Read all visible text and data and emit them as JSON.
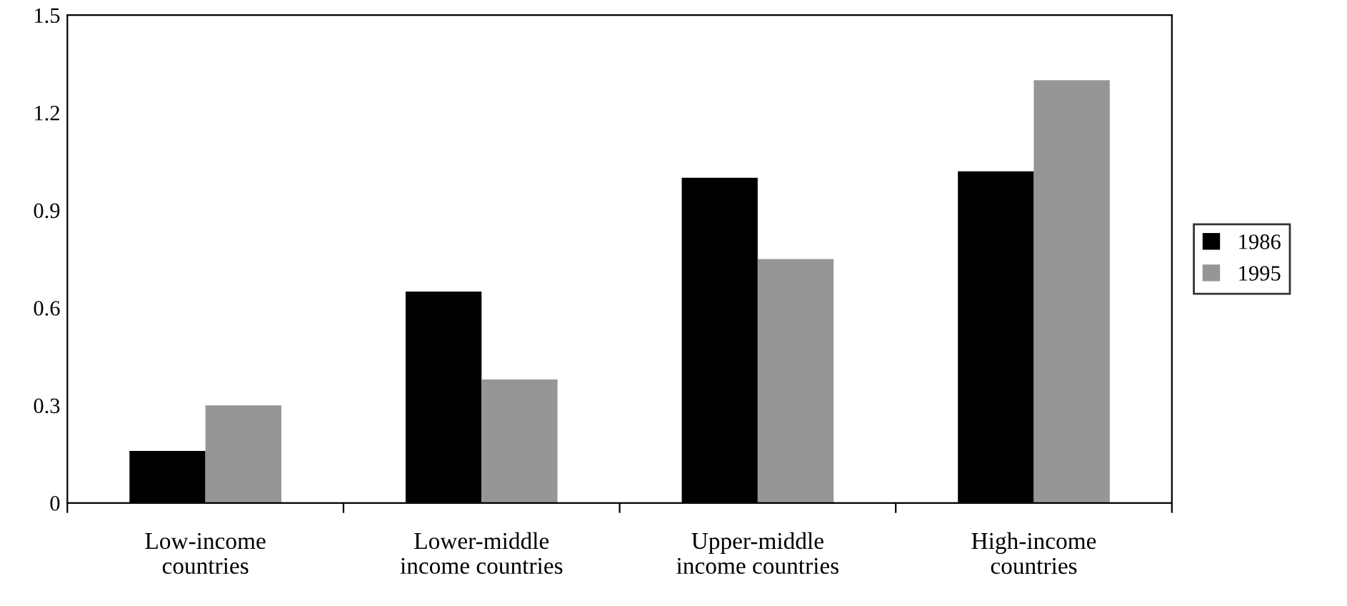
{
  "chart_data": {
    "type": "bar",
    "categories": [
      "Low-income\ncountries",
      "Lower-middle\nincome countries",
      "Upper-middle\nincome countries",
      "High-income\ncountries"
    ],
    "series": [
      {
        "name": "1986",
        "color": "#000000",
        "values": [
          0.16,
          0.65,
          1.0,
          1.02
        ]
      },
      {
        "name": "1995",
        "color": "#969696",
        "values": [
          0.3,
          0.38,
          0.75,
          1.3
        ]
      }
    ],
    "ylim": [
      0,
      1.5
    ],
    "yticks": [
      {
        "value": 0,
        "label": "0"
      },
      0.3,
      0.6,
      0.9,
      1.2,
      1.5
    ],
    "grid": false,
    "legend": "right"
  }
}
